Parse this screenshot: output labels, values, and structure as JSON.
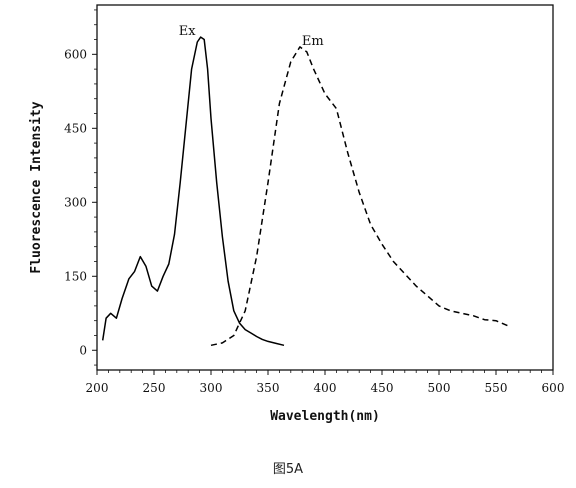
{
  "chart_data": {
    "type": "line",
    "xlabel": "Wavelength(nm)",
    "ylabel": "Fluorescence Intensity",
    "xlim": [
      200,
      600
    ],
    "ylim": [
      -40,
      700
    ],
    "xticks": [
      200,
      250,
      300,
      350,
      400,
      450,
      500,
      550,
      600
    ],
    "yticks": [
      0,
      150,
      300,
      450,
      600
    ],
    "grid": false,
    "legend": "none",
    "series": [
      {
        "name": "Ex",
        "style": "solid",
        "color": "#000000",
        "x": [
          205,
          208,
          212,
          217,
          222,
          228,
          233,
          238,
          243,
          248,
          253,
          258,
          263,
          268,
          273,
          278,
          283,
          288,
          291,
          294,
          297,
          300,
          305,
          310,
          315,
          320,
          325,
          330,
          335,
          340,
          345,
          350,
          357,
          364
        ],
        "y": [
          20,
          65,
          75,
          65,
          105,
          145,
          160,
          190,
          170,
          130,
          120,
          150,
          175,
          235,
          340,
          455,
          570,
          625,
          635,
          630,
          570,
          470,
          340,
          230,
          140,
          80,
          55,
          42,
          35,
          28,
          22,
          18,
          14,
          10
        ]
      },
      {
        "name": "Em",
        "style": "dashed",
        "color": "#000000",
        "x": [
          300,
          310,
          320,
          330,
          340,
          350,
          360,
          370,
          378,
          384,
          390,
          400,
          410,
          420,
          430,
          440,
          450,
          460,
          470,
          480,
          490,
          500,
          510,
          520,
          530,
          540,
          550,
          560
        ],
        "y": [
          10,
          15,
          30,
          80,
          190,
          340,
          500,
          585,
          615,
          605,
          570,
          520,
          490,
          400,
          320,
          255,
          215,
          180,
          155,
          130,
          110,
          90,
          80,
          75,
          70,
          62,
          60,
          50
        ]
      }
    ]
  },
  "caption": "图5A"
}
